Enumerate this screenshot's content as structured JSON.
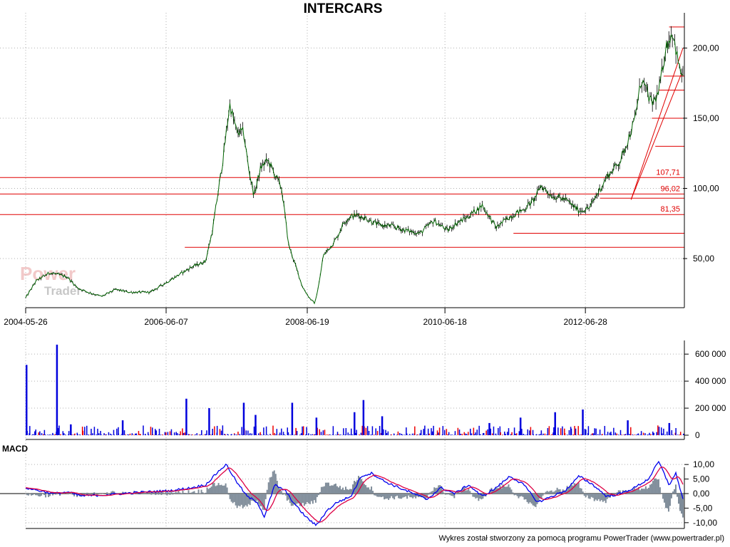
{
  "title": "INTERCARS",
  "footer": "Wykres został stworzony za pomocą programu PowerTrader (www.powertrader.pl)",
  "watermark": {
    "line1": "Power",
    "line2": "Trader"
  },
  "colors": {
    "price": "#006400",
    "price_wick": "#000000",
    "levels": "#e00000",
    "volume": "#0000dd",
    "volume_red": "#ee0000",
    "macd": "#0000ee",
    "signal": "#dd0044",
    "histogram": "#7f8c99",
    "grid": "#b0b0b0"
  },
  "chart_data": [
    {
      "type": "line",
      "panel": "price",
      "title": "INTERCARS",
      "x_tick_labels": [
        "2004-05-26",
        "2006-06-07",
        "2008-06-19",
        "2010-06-18",
        "2012-06-28"
      ],
      "x_ticks_year": [
        2004.4,
        2006.43,
        2008.47,
        2010.46,
        2012.49
      ],
      "x_range": [
        2004.4,
        2013.9
      ],
      "ylim": [
        15,
        220
      ],
      "y_ticks": [
        50,
        100,
        150,
        200
      ],
      "y_tick_labels": [
        "50,00",
        "100,00",
        "150,00",
        "200,00"
      ],
      "series": [
        {
          "x": [
            2004.4,
            2004.55,
            2004.75,
            2005.0,
            2005.15,
            2005.3,
            2005.5,
            2005.7,
            2005.9,
            2006.2,
            2006.4,
            2006.6,
            2006.8,
            2007.0,
            2007.1,
            2007.25,
            2007.35,
            2007.45,
            2007.55,
            2007.62,
            2007.7,
            2007.8,
            2007.9,
            2008.0,
            2008.1,
            2008.2,
            2008.3,
            2008.4,
            2008.5,
            2008.58,
            2008.65,
            2008.7,
            2008.8,
            2008.9,
            2009.0,
            2009.1,
            2009.2,
            2009.35,
            2009.5,
            2009.7,
            2009.9,
            2010.1,
            2010.3,
            2010.5,
            2010.62,
            2010.8,
            2011.0,
            2011.2,
            2011.4,
            2011.6,
            2011.75,
            2011.85,
            2012.0,
            2012.2,
            2012.4,
            2012.55,
            2012.65,
            2012.8,
            2013.0,
            2013.2,
            2013.3,
            2013.45,
            2013.55,
            2013.65,
            2013.75,
            2013.85,
            2013.9
          ],
          "values": [
            22,
            34,
            40,
            37,
            29,
            26,
            23,
            28,
            26,
            26,
            32,
            38,
            44,
            48,
            70,
            120,
            160,
            140,
            140,
            115,
            95,
            115,
            120,
            110,
            100,
            60,
            45,
            30,
            22,
            18,
            35,
            52,
            58,
            65,
            76,
            80,
            81,
            78,
            74,
            73,
            70,
            68,
            77,
            70,
            75,
            80,
            88,
            72,
            80,
            85,
            92,
            102,
            95,
            92,
            84,
            86,
            95,
            108,
            120,
            148,
            178,
            160,
            168,
            200,
            212,
            185,
            180
          ]
        }
      ],
      "horizontal_levels": [
        {
          "value": 107.71,
          "label": "107,71"
        },
        {
          "value": 96.02,
          "label": "96,02"
        },
        {
          "value": 81.35,
          "label": "81,35"
        }
      ],
      "short_levels": [
        58,
        68,
        93,
        130,
        150,
        170,
        180,
        215
      ]
    },
    {
      "type": "bar",
      "panel": "volume",
      "ylim": [
        0,
        680000
      ],
      "y_ticks": [
        0,
        200000,
        400000,
        600000
      ],
      "y_tick_labels": [
        "0",
        "200 000",
        "400 000",
        "600 000"
      ],
      "spikes": [
        {
          "x": 2004.41,
          "value": 520000
        },
        {
          "x": 2004.85,
          "value": 670000
        },
        {
          "x": 2005.05,
          "value": 80000
        },
        {
          "x": 2005.8,
          "value": 110000
        },
        {
          "x": 2006.72,
          "value": 270000
        },
        {
          "x": 2007.05,
          "value": 200000
        },
        {
          "x": 2007.55,
          "value": 240000
        },
        {
          "x": 2007.72,
          "value": 150000
        },
        {
          "x": 2008.25,
          "value": 240000
        },
        {
          "x": 2008.6,
          "value": 130000
        },
        {
          "x": 2009.15,
          "value": 170000
        },
        {
          "x": 2009.28,
          "value": 260000
        },
        {
          "x": 2009.55,
          "value": 140000
        },
        {
          "x": 2011.1,
          "value": 90000
        },
        {
          "x": 2011.55,
          "value": 130000
        },
        {
          "x": 2012.05,
          "value": 170000
        },
        {
          "x": 2012.45,
          "value": 190000
        },
        {
          "x": 2013.1,
          "value": 110000
        },
        {
          "x": 2013.7,
          "value": 90000
        }
      ]
    },
    {
      "type": "line",
      "panel": "macd",
      "title": "MACD",
      "ylim": [
        -12,
        12
      ],
      "y_ticks": [
        10,
        5,
        0,
        -5,
        -10
      ],
      "y_tick_labels": [
        "10,00",
        "5,00",
        "0,00",
        "-5,00",
        "-10,00"
      ],
      "series": [
        {
          "x": [
            2004.4,
            2004.6,
            2004.8,
            2005.0,
            2005.2,
            2005.5,
            2005.8,
            2006.1,
            2006.5,
            2006.8,
            2007.0,
            2007.2,
            2007.3,
            2007.45,
            2007.6,
            2007.75,
            2007.85,
            2008.0,
            2008.15,
            2008.3,
            2008.45,
            2008.6,
            2008.75,
            2008.9,
            2009.1,
            2009.25,
            2009.4,
            2009.6,
            2009.8,
            2010.0,
            2010.2,
            2010.4,
            2010.6,
            2010.8,
            2011.0,
            2011.2,
            2011.4,
            2011.6,
            2011.8,
            2012.0,
            2012.2,
            2012.4,
            2012.6,
            2012.8,
            2013.0,
            2013.2,
            2013.4,
            2013.55,
            2013.7,
            2013.8,
            2013.9
          ],
          "values": [
            2,
            1,
            0,
            0.5,
            -0.8,
            -0.5,
            0,
            0.5,
            1,
            2,
            3,
            8,
            10,
            4,
            -1,
            -3,
            -8,
            3,
            1,
            -4,
            -8,
            -11,
            -6,
            -3,
            -1,
            6,
            7,
            4,
            2,
            0,
            -2,
            2,
            0,
            3,
            -1,
            2,
            6,
            3,
            -3,
            -1,
            1,
            6,
            3,
            -1,
            0,
            2,
            5,
            11,
            3,
            7,
            -2
          ]
        }
      ]
    }
  ]
}
